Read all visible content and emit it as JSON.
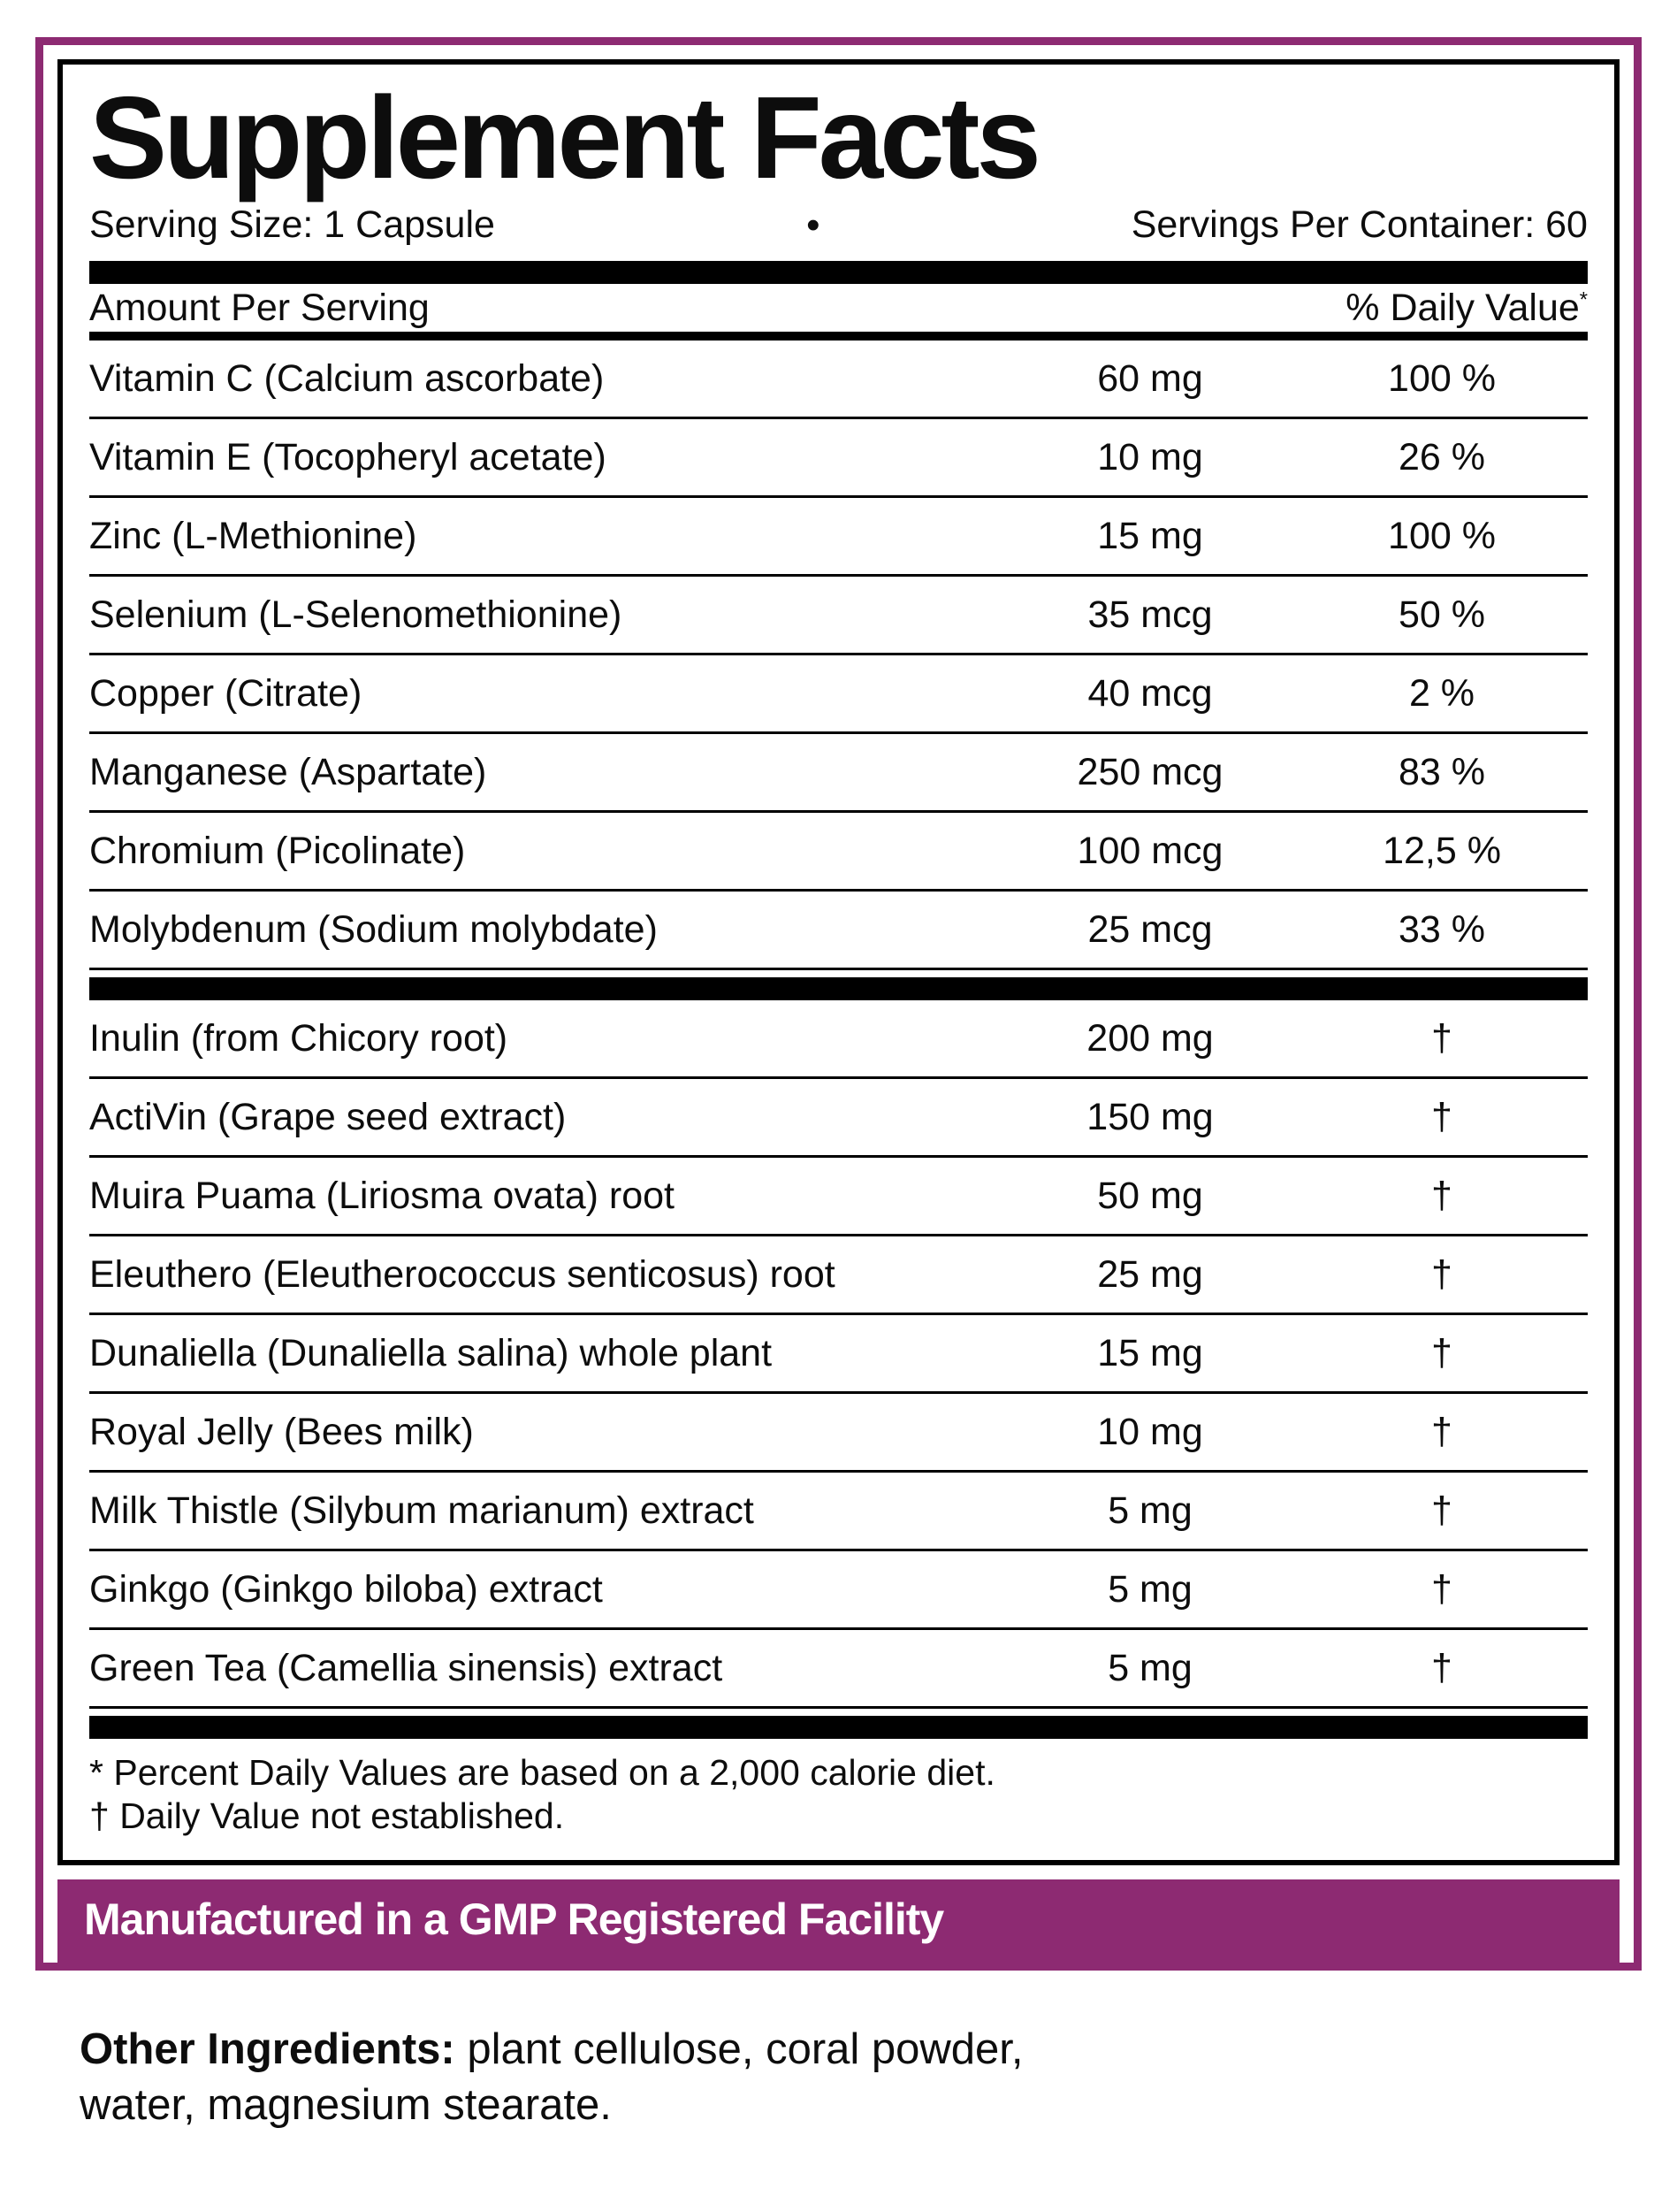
{
  "label": {
    "title": "Supplement Facts",
    "serving_size": "Serving Size: 1 Capsule",
    "bullet": "•",
    "servings_per_container": "Servings Per Container: 60",
    "col_amount": "Amount Per Serving",
    "col_dv": "% Daily Value",
    "col_dv_sup": "*",
    "vitamins": [
      {
        "name": "Vitamin C (Calcium ascorbate)",
        "amount": "60 mg",
        "dv": "100 %"
      },
      {
        "name": "Vitamin E (Tocopheryl acetate)",
        "amount": "10 mg",
        "dv": "26 %"
      },
      {
        "name": "Zinc (L-Methionine)",
        "amount": "15 mg",
        "dv": "100 %"
      },
      {
        "name": "Selenium (L-Selenomethionine)",
        "amount": "35 mcg",
        "dv": "50 %"
      },
      {
        "name": "Copper (Citrate)",
        "amount": "40 mcg",
        "dv": "2 %"
      },
      {
        "name": "Manganese (Aspartate)",
        "amount": "250 mcg",
        "dv": "83 %"
      },
      {
        "name": "Chromium (Picolinate)",
        "amount": "100 mcg",
        "dv": "12,5 %"
      },
      {
        "name": "Molybdenum (Sodium molybdate)",
        "amount": "25 mcg",
        "dv": "33 %"
      }
    ],
    "botanicals": [
      {
        "name": "Inulin (from Chicory root)",
        "amount": "200 mg",
        "dv": "†"
      },
      {
        "name": "ActiVin (Grape seed extract)",
        "amount": "150 mg",
        "dv": "†"
      },
      {
        "name": "Muira Puama (Liriosma ovata) root",
        "amount": "50 mg",
        "dv": "†"
      },
      {
        "name": "Eleuthero (Eleutherococcus senticosus) root",
        "amount": "25 mg",
        "dv": "†"
      },
      {
        "name": "Dunaliella (Dunaliella salina) whole plant",
        "amount": "15 mg",
        "dv": "†"
      },
      {
        "name": "Royal Jelly (Bees milk)",
        "amount": "10 mg",
        "dv": "†"
      },
      {
        "name": "Milk Thistle (Silybum marianum) extract",
        "amount": "5 mg",
        "dv": "†"
      },
      {
        "name": "Ginkgo (Ginkgo biloba) extract",
        "amount": "5 mg",
        "dv": "†"
      },
      {
        "name": "Green Tea (Camellia sinensis) extract",
        "amount": "5 mg",
        "dv": "†"
      }
    ],
    "footnote1": "* Percent Daily Values are based on a 2,000 calorie diet.",
    "footnote2": "† Daily Value not established.",
    "banner": "Manufactured in a GMP Registered Facility",
    "other_label": "Other Ingredients:",
    "other_text": " plant cellulose, coral powder, water, magnesium stearate.",
    "colors": {
      "accent_purple": "#8d2a72",
      "text": "#0d0d0d"
    }
  }
}
